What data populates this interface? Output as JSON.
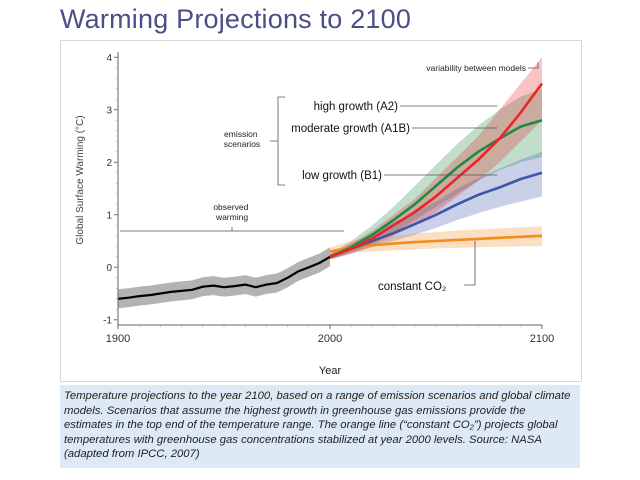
{
  "title": "Warming Projections to 2100",
  "caption": "Temperature projections to the year 2100, based on a range of emission scenarios and global climate models. Scenarios that assume the highest growth in greenhouse gas emissions provide the estimates in the top end of the temperature range. The orange line (“constant CO₂”) projects global temperatures with greenhouse gas concentrations stabilized at year 2000 levels. Source: NASA (adapted from IPCC, 2007)",
  "colors": {
    "title": "#4a4f86",
    "observed": "#000000",
    "observed_band": "#9a9a9a",
    "high": "#e8262a",
    "moderate": "#1f8a47",
    "low": "#3d57a8",
    "constant": "#f28c1c"
  },
  "chart_data": {
    "type": "line",
    "title": "",
    "xlabel": "Year",
    "ylabel": "Global Surface Warming (°C)",
    "xlim": [
      1900,
      2100
    ],
    "ylim": [
      -1.1,
      4.1
    ],
    "xticks": [
      1900,
      2000,
      2100
    ],
    "yticks": [
      -1,
      0,
      1,
      2,
      3,
      4
    ],
    "annotations": {
      "variability": "variability between models",
      "emission_scenarios": "emission scenarios",
      "observed_warming": "observed warming"
    },
    "series": [
      {
        "name": "observed warming",
        "key": "observed",
        "x": [
          1900,
          1905,
          1910,
          1915,
          1920,
          1925,
          1930,
          1935,
          1940,
          1945,
          1950,
          1955,
          1960,
          1965,
          1970,
          1975,
          1980,
          1985,
          1990,
          1995,
          2000
        ],
        "values": [
          -0.6,
          -0.58,
          -0.55,
          -0.53,
          -0.5,
          -0.47,
          -0.45,
          -0.43,
          -0.37,
          -0.35,
          -0.38,
          -0.36,
          -0.33,
          -0.38,
          -0.33,
          -0.3,
          -0.2,
          -0.08,
          0.0,
          0.08,
          0.2
        ],
        "band": 0.18
      },
      {
        "name": "high growth (A2)",
        "key": "high",
        "x": [
          2000,
          2010,
          2020,
          2030,
          2040,
          2050,
          2060,
          2070,
          2080,
          2090,
          2100
        ],
        "values": [
          0.2,
          0.35,
          0.55,
          0.8,
          1.05,
          1.35,
          1.7,
          2.05,
          2.45,
          2.95,
          3.5
        ],
        "band_lower": [
          0.15,
          0.25,
          0.4,
          0.6,
          0.8,
          1.05,
          1.35,
          1.65,
          2.0,
          2.4,
          2.8
        ],
        "band_upper": [
          0.25,
          0.45,
          0.7,
          1.0,
          1.3,
          1.7,
          2.1,
          2.5,
          3.0,
          3.5,
          4.0
        ]
      },
      {
        "name": "moderate growth (A1B)",
        "key": "moderate",
        "x": [
          2000,
          2010,
          2020,
          2030,
          2040,
          2050,
          2060,
          2070,
          2080,
          2090,
          2100
        ],
        "values": [
          0.2,
          0.38,
          0.62,
          0.9,
          1.2,
          1.55,
          1.9,
          2.2,
          2.45,
          2.68,
          2.8
        ],
        "band_lower": [
          0.15,
          0.28,
          0.45,
          0.65,
          0.9,
          1.15,
          1.4,
          1.65,
          1.85,
          2.0,
          2.1
        ],
        "band_upper": [
          0.25,
          0.5,
          0.8,
          1.15,
          1.55,
          1.95,
          2.35,
          2.7,
          3.0,
          3.25,
          3.4
        ]
      },
      {
        "name": "low growth (B1)",
        "key": "low",
        "x": [
          2000,
          2010,
          2020,
          2030,
          2040,
          2050,
          2060,
          2070,
          2080,
          2090,
          2100
        ],
        "values": [
          0.2,
          0.35,
          0.5,
          0.65,
          0.82,
          1.0,
          1.2,
          1.38,
          1.52,
          1.68,
          1.8
        ],
        "band_lower": [
          0.15,
          0.27,
          0.38,
          0.5,
          0.62,
          0.75,
          0.9,
          1.03,
          1.15,
          1.25,
          1.35
        ],
        "band_upper": [
          0.25,
          0.45,
          0.65,
          0.85,
          1.05,
          1.25,
          1.5,
          1.7,
          1.88,
          2.05,
          2.2
        ]
      },
      {
        "name": "constant CO₂",
        "key": "constant",
        "x": [
          2000,
          2010,
          2020,
          2030,
          2040,
          2050,
          2060,
          2070,
          2080,
          2090,
          2100
        ],
        "values": [
          0.3,
          0.38,
          0.42,
          0.45,
          0.48,
          0.5,
          0.52,
          0.54,
          0.56,
          0.58,
          0.6
        ],
        "band_lower": [
          0.22,
          0.28,
          0.3,
          0.32,
          0.34,
          0.36,
          0.37,
          0.38,
          0.39,
          0.4,
          0.4
        ],
        "band_upper": [
          0.38,
          0.5,
          0.56,
          0.6,
          0.64,
          0.67,
          0.7,
          0.72,
          0.74,
          0.76,
          0.78
        ]
      }
    ]
  }
}
